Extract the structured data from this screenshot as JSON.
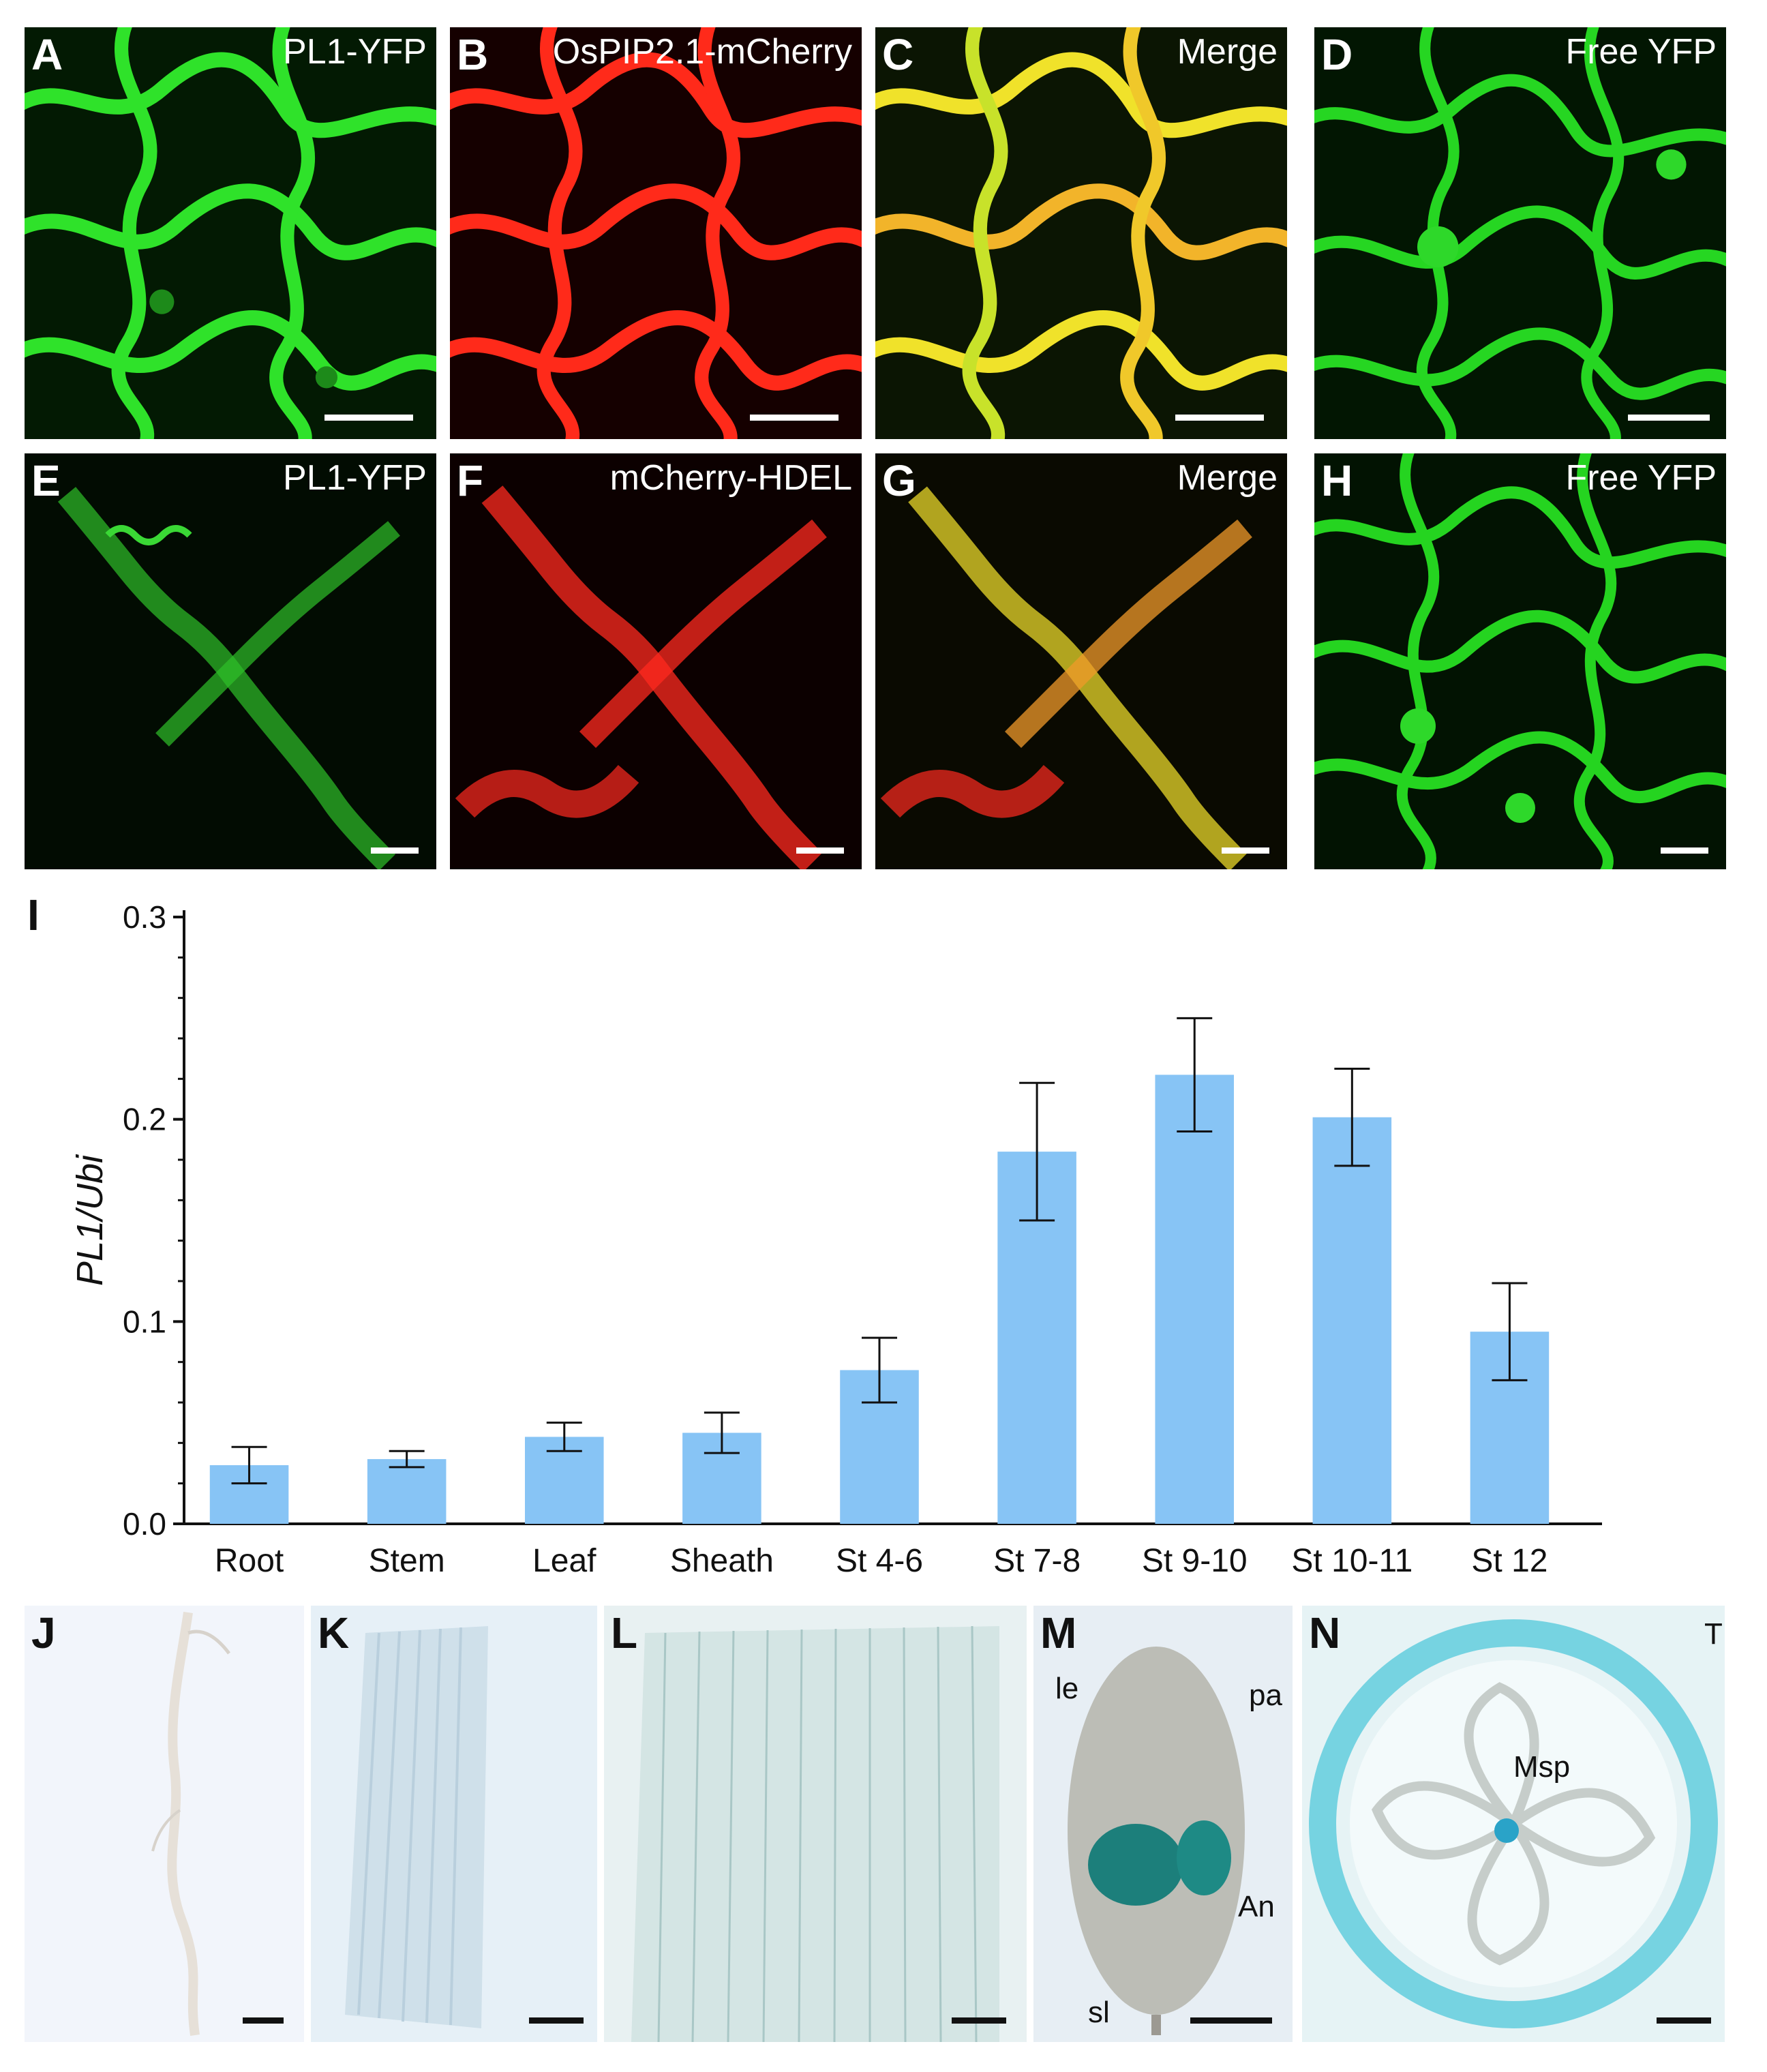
{
  "panels_top": [
    {
      "id": "A",
      "title": "PL1-YFP",
      "color": "#22d21e"
    },
    {
      "id": "B",
      "title": "OsPIP2.1-mCherry",
      "color": "#ff2218"
    },
    {
      "id": "C",
      "title": "Merge",
      "color": "#e8e020"
    },
    {
      "id": "D",
      "title": "Free YFP",
      "color": "#1ed21c"
    },
    {
      "id": "E",
      "title": "PL1-YFP",
      "color": "#2bbd22"
    },
    {
      "id": "F",
      "title": "mCherry-HDEL",
      "color": "#ff2a1f"
    },
    {
      "id": "G",
      "title": "Merge",
      "color": "#e9c321"
    },
    {
      "id": "H",
      "title": "Free YFP",
      "color": "#1fd51a"
    }
  ],
  "chart_label": "I",
  "chart_data": {
    "type": "bar",
    "categories": [
      "Root",
      "Stem",
      "Leaf",
      "Sheath",
      "St 4-6",
      "St 7-8",
      "St 9-10",
      "St 10-11",
      "St 12"
    ],
    "values": [
      0.029,
      0.032,
      0.043,
      0.045,
      0.076,
      0.184,
      0.222,
      0.201,
      0.095
    ],
    "errors": [
      0.009,
      0.004,
      0.007,
      0.01,
      0.016,
      0.034,
      0.028,
      0.024,
      0.024
    ],
    "ylabel": "PL1/Ubi",
    "ylim": [
      0,
      0.3
    ],
    "yticks": [
      "0.0",
      "0.1",
      "0.2",
      "0.3"
    ],
    "bar_color": "#87c4f5",
    "grid": false
  },
  "panels_bottom": [
    {
      "id": "J",
      "labels": []
    },
    {
      "id": "K",
      "labels": []
    },
    {
      "id": "L",
      "labels": []
    },
    {
      "id": "M",
      "labels": [
        "le",
        "pa",
        "An",
        "sl"
      ]
    },
    {
      "id": "N",
      "labels": [
        "T",
        "Msp"
      ]
    }
  ]
}
